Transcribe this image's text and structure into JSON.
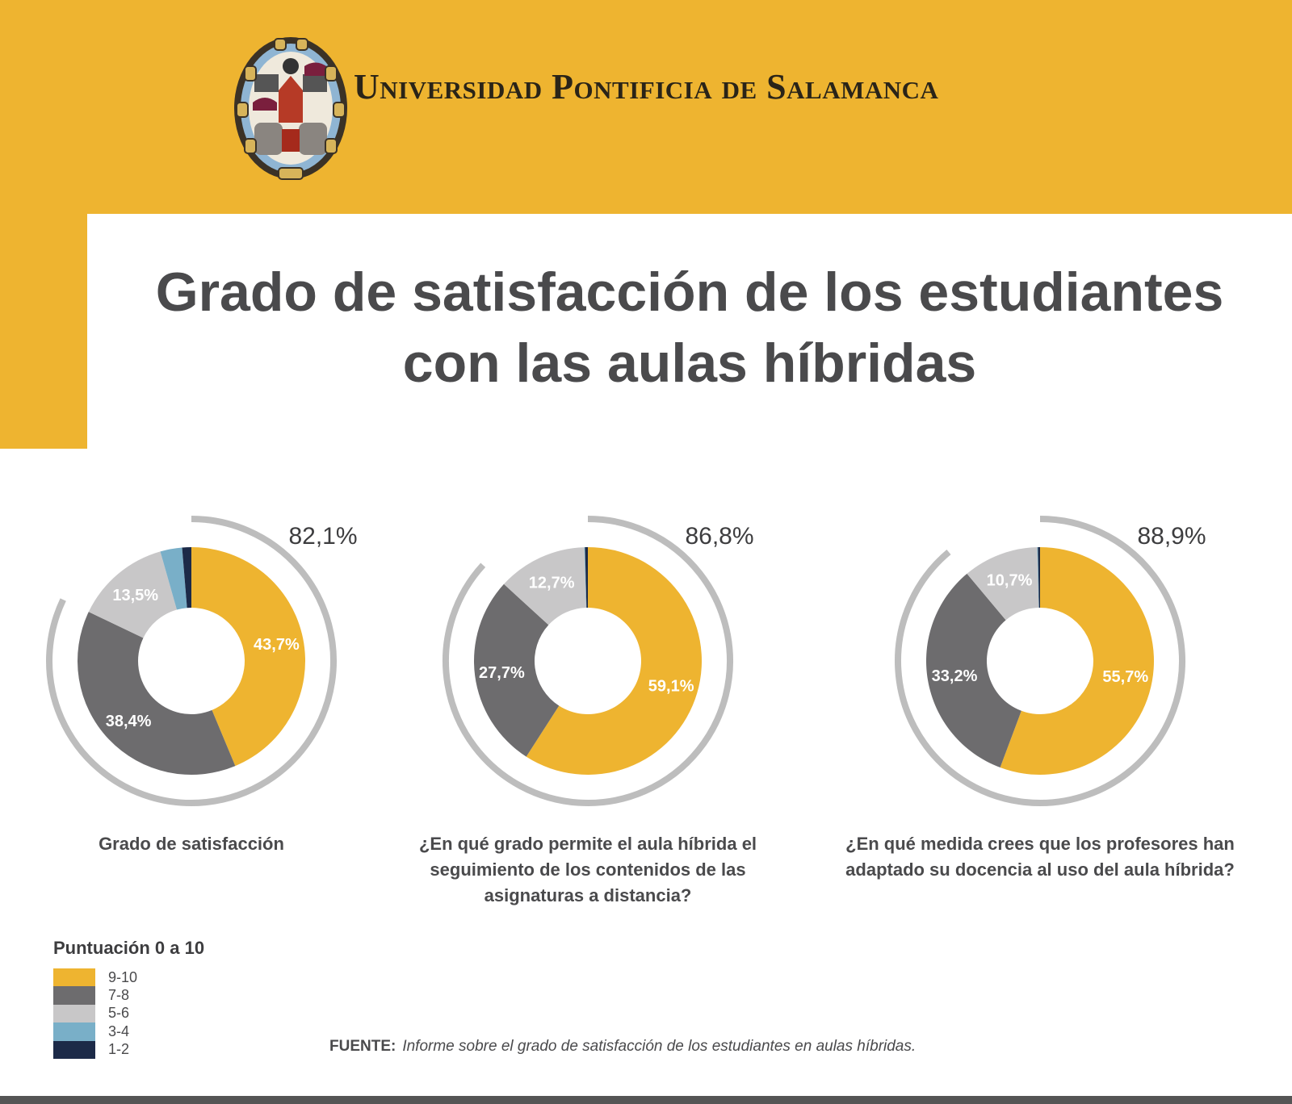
{
  "header": {
    "institution": "Universidad Pontificia de Salamanca"
  },
  "title": {
    "line1": "Grado de satisfacción de los estudiantes",
    "line2": "con las aulas híbridas"
  },
  "colors": {
    "9-10": "#EEB430",
    "7-8": "#6D6C6E",
    "5-6": "#C8C7C8",
    "3-4": "#79AFC8",
    "1-2": "#1C2A48",
    "outer_arc": "#BDBDBD",
    "brand": "#EEB430"
  },
  "chart_data": [
    {
      "type": "pie",
      "variant": "donut",
      "title": "Grado de satisfacción",
      "highlight": "82,1%",
      "highlight_value": 82.1,
      "categories": [
        "9-10",
        "7-8",
        "5-6",
        "3-4",
        "1-2"
      ],
      "values": [
        43.7,
        38.4,
        13.5,
        3.1,
        1.3
      ],
      "labels": [
        "43,7%",
        "38,4%",
        "13,5%",
        "",
        ""
      ]
    },
    {
      "type": "pie",
      "variant": "donut",
      "title": "¿En qué grado permite el aula híbrida el seguimiento de los contenidos de las asignaturas a distancia?",
      "highlight": "86,8%",
      "highlight_value": 86.8,
      "categories": [
        "9-10",
        "7-8",
        "5-6",
        "3-4",
        "1-2"
      ],
      "values": [
        59.1,
        27.7,
        12.7,
        0.1,
        0.4
      ],
      "labels": [
        "59,1%",
        "27,7%",
        "12,7%",
        "",
        ""
      ]
    },
    {
      "type": "pie",
      "variant": "donut",
      "title": "¿En qué medida crees que los profesores han adaptado su docencia al uso del aula híbrida?",
      "highlight": "88,9%",
      "highlight_value": 88.9,
      "categories": [
        "9-10",
        "7-8",
        "5-6",
        "3-4",
        "1-2"
      ],
      "values": [
        55.7,
        33.2,
        10.7,
        0.1,
        0.3
      ],
      "labels": [
        "55,7%",
        "33,2%",
        "10,7%",
        "",
        ""
      ]
    }
  ],
  "questions": [
    "Grado de satisfacción",
    "¿En qué grado permite el aula híbrida el seguimiento de los contenidos de las asignaturas a distancia?",
    "¿En qué medida crees que los profesores han adaptado su docencia al uso del aula híbrida?"
  ],
  "legend": {
    "title": "Puntuación 0 a 10",
    "items": [
      "9-10",
      "7-8",
      "5-6",
      "3-4",
      "1-2"
    ]
  },
  "source": {
    "label": "FUENTE:",
    "text": "Informe sobre el grado de satisfacción de los estudiantes en aulas híbridas."
  }
}
